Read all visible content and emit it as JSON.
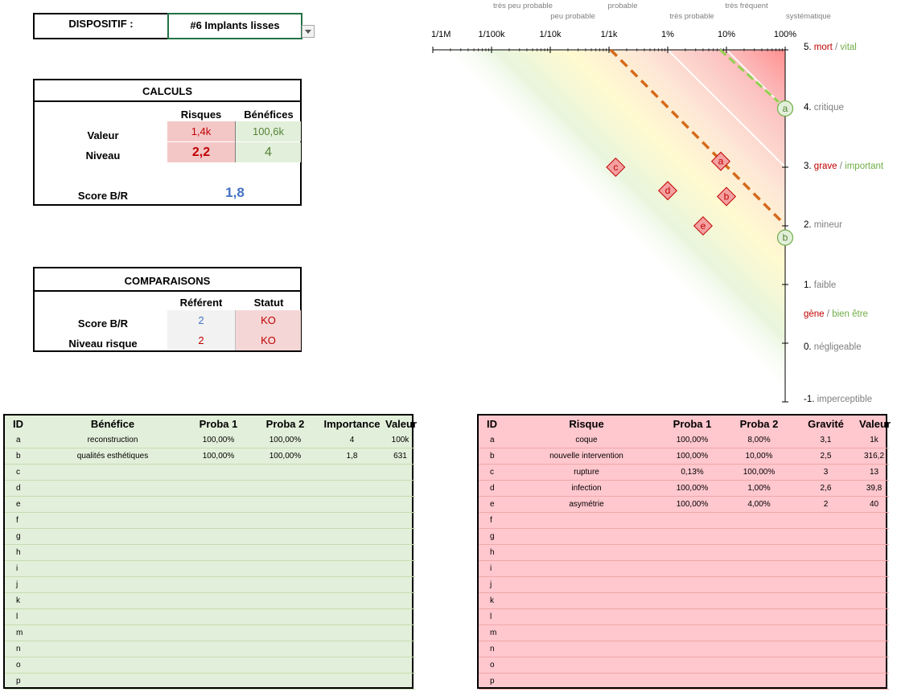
{
  "device": {
    "label": "DISPOSITIF :",
    "value": "#6 Implants lisses"
  },
  "calculs": {
    "title": "CALCULS",
    "col_risques": "Risques",
    "col_benefices": "Bénéfices",
    "row_valeur": "Valeur",
    "row_niveau": "Niveau",
    "valeur_risques": "1,4k",
    "valeur_benefices": "100,6k",
    "niveau_risques": "2,2",
    "niveau_benefices": "4",
    "score_label": "Score B/R",
    "score_value": "1,8"
  },
  "comparaisons": {
    "title": "COMPARAISONS",
    "col_referent": "Référent",
    "col_statut": "Statut",
    "row_score": "Score B/R",
    "row_niveau": "Niveau risque",
    "score_ref": "2",
    "score_statut": "KO",
    "niveau_ref": "2",
    "niveau_statut": "KO"
  },
  "chart_data": {
    "type": "scatter",
    "x_top_labels": [
      "très peu probable",
      "peu probable",
      "probable",
      "très probable",
      "très fréquent",
      "systématique"
    ],
    "x_ticks": [
      "1/1M",
      "1/100k",
      "1/10k",
      "1/1k",
      "1%",
      "10%",
      "100%"
    ],
    "x_scale": "log",
    "x_range": [
      "1/1M",
      "100%"
    ],
    "y_range": [
      -1,
      5
    ],
    "y_labels": [
      {
        "level": "5.",
        "risk": "mort",
        "sep": "/",
        "benefit": "vital"
      },
      {
        "level": "4.",
        "text": "critique"
      },
      {
        "level": "3.",
        "risk": "grave",
        "sep": "/",
        "benefit": "important"
      },
      {
        "level": "2.",
        "text": "mineur"
      },
      {
        "level": "1.",
        "text": "faible"
      },
      {
        "level": "",
        "risk": "gène",
        "sep": "/",
        "benefit": "bien être"
      },
      {
        "level": "0.",
        "text": "négligeable"
      },
      {
        "level": "-1.",
        "text": "imperceptible"
      }
    ],
    "risk_points": [
      {
        "id": "a",
        "x": "8,00%",
        "y": 3.1
      },
      {
        "id": "b",
        "x": "10,00%",
        "y": 2.5
      },
      {
        "id": "c",
        "x": "0,13%",
        "y": 3
      },
      {
        "id": "d",
        "x": "1,00%",
        "y": 2.6
      },
      {
        "id": "e",
        "x": "4,00%",
        "y": 2
      }
    ],
    "benefit_points": [
      {
        "id": "a",
        "x": "100%",
        "y": 4
      },
      {
        "id": "b",
        "x": "100%",
        "y": 1.8
      }
    ],
    "colors": {
      "risk": "#c00000",
      "benefit": "#70ad47",
      "risk_fill": "#f4a0a0",
      "benefit_fill": "#e2efda",
      "risk_line": "#d46a1a",
      "benefit_line": "#92d050",
      "score": "#4472c4",
      "grey_text": "#7f7f7f"
    }
  },
  "benefits_table": {
    "headers": [
      "ID",
      "Bénéfice",
      "Proba 1",
      "Proba 2",
      "Importance",
      "Valeur"
    ],
    "rows": [
      [
        "a",
        "reconstruction",
        "100,00%",
        "100,00%",
        "4",
        "100k"
      ],
      [
        "b",
        "qualités esthétiques",
        "100,00%",
        "100,00%",
        "1,8",
        "631"
      ],
      [
        "c",
        "",
        "",
        "",
        "",
        ""
      ],
      [
        "d",
        "",
        "",
        "",
        "",
        ""
      ],
      [
        "e",
        "",
        "",
        "",
        "",
        ""
      ],
      [
        "f",
        "",
        "",
        "",
        "",
        ""
      ],
      [
        "g",
        "",
        "",
        "",
        "",
        ""
      ],
      [
        "h",
        "",
        "",
        "",
        "",
        ""
      ],
      [
        "i",
        "",
        "",
        "",
        "",
        ""
      ],
      [
        "j",
        "",
        "",
        "",
        "",
        ""
      ],
      [
        "k",
        "",
        "",
        "",
        "",
        ""
      ],
      [
        "l",
        "",
        "",
        "",
        "",
        ""
      ],
      [
        "m",
        "",
        "",
        "",
        "",
        ""
      ],
      [
        "n",
        "",
        "",
        "",
        "",
        ""
      ],
      [
        "o",
        "",
        "",
        "",
        "",
        ""
      ],
      [
        "p",
        "",
        "",
        "",
        "",
        ""
      ]
    ]
  },
  "risks_table": {
    "headers": [
      "ID",
      "Risque",
      "Proba 1",
      "Proba 2",
      "Gravité",
      "Valeur"
    ],
    "rows": [
      [
        "a",
        "coque",
        "100,00%",
        "8,00%",
        "3,1",
        "1k"
      ],
      [
        "b",
        "nouvelle intervention",
        "100,00%",
        "10,00%",
        "2,5",
        "316,2"
      ],
      [
        "c",
        "rupture",
        "0,13%",
        "100,00%",
        "3",
        "13"
      ],
      [
        "d",
        "infection",
        "100,00%",
        "1,00%",
        "2,6",
        "39,8"
      ],
      [
        "e",
        "asymétrie",
        "100,00%",
        "4,00%",
        "2",
        "40"
      ],
      [
        "f",
        "",
        "",
        "",
        "",
        ""
      ],
      [
        "g",
        "",
        "",
        "",
        "",
        ""
      ],
      [
        "h",
        "",
        "",
        "",
        "",
        ""
      ],
      [
        "i",
        "",
        "",
        "",
        "",
        ""
      ],
      [
        "j",
        "",
        "",
        "",
        "",
        ""
      ],
      [
        "k",
        "",
        "",
        "",
        "",
        ""
      ],
      [
        "l",
        "",
        "",
        "",
        "",
        ""
      ],
      [
        "m",
        "",
        "",
        "",
        "",
        ""
      ],
      [
        "n",
        "",
        "",
        "",
        "",
        ""
      ],
      [
        "o",
        "",
        "",
        "",
        "",
        ""
      ],
      [
        "p",
        "",
        "",
        "",
        "",
        ""
      ]
    ]
  }
}
